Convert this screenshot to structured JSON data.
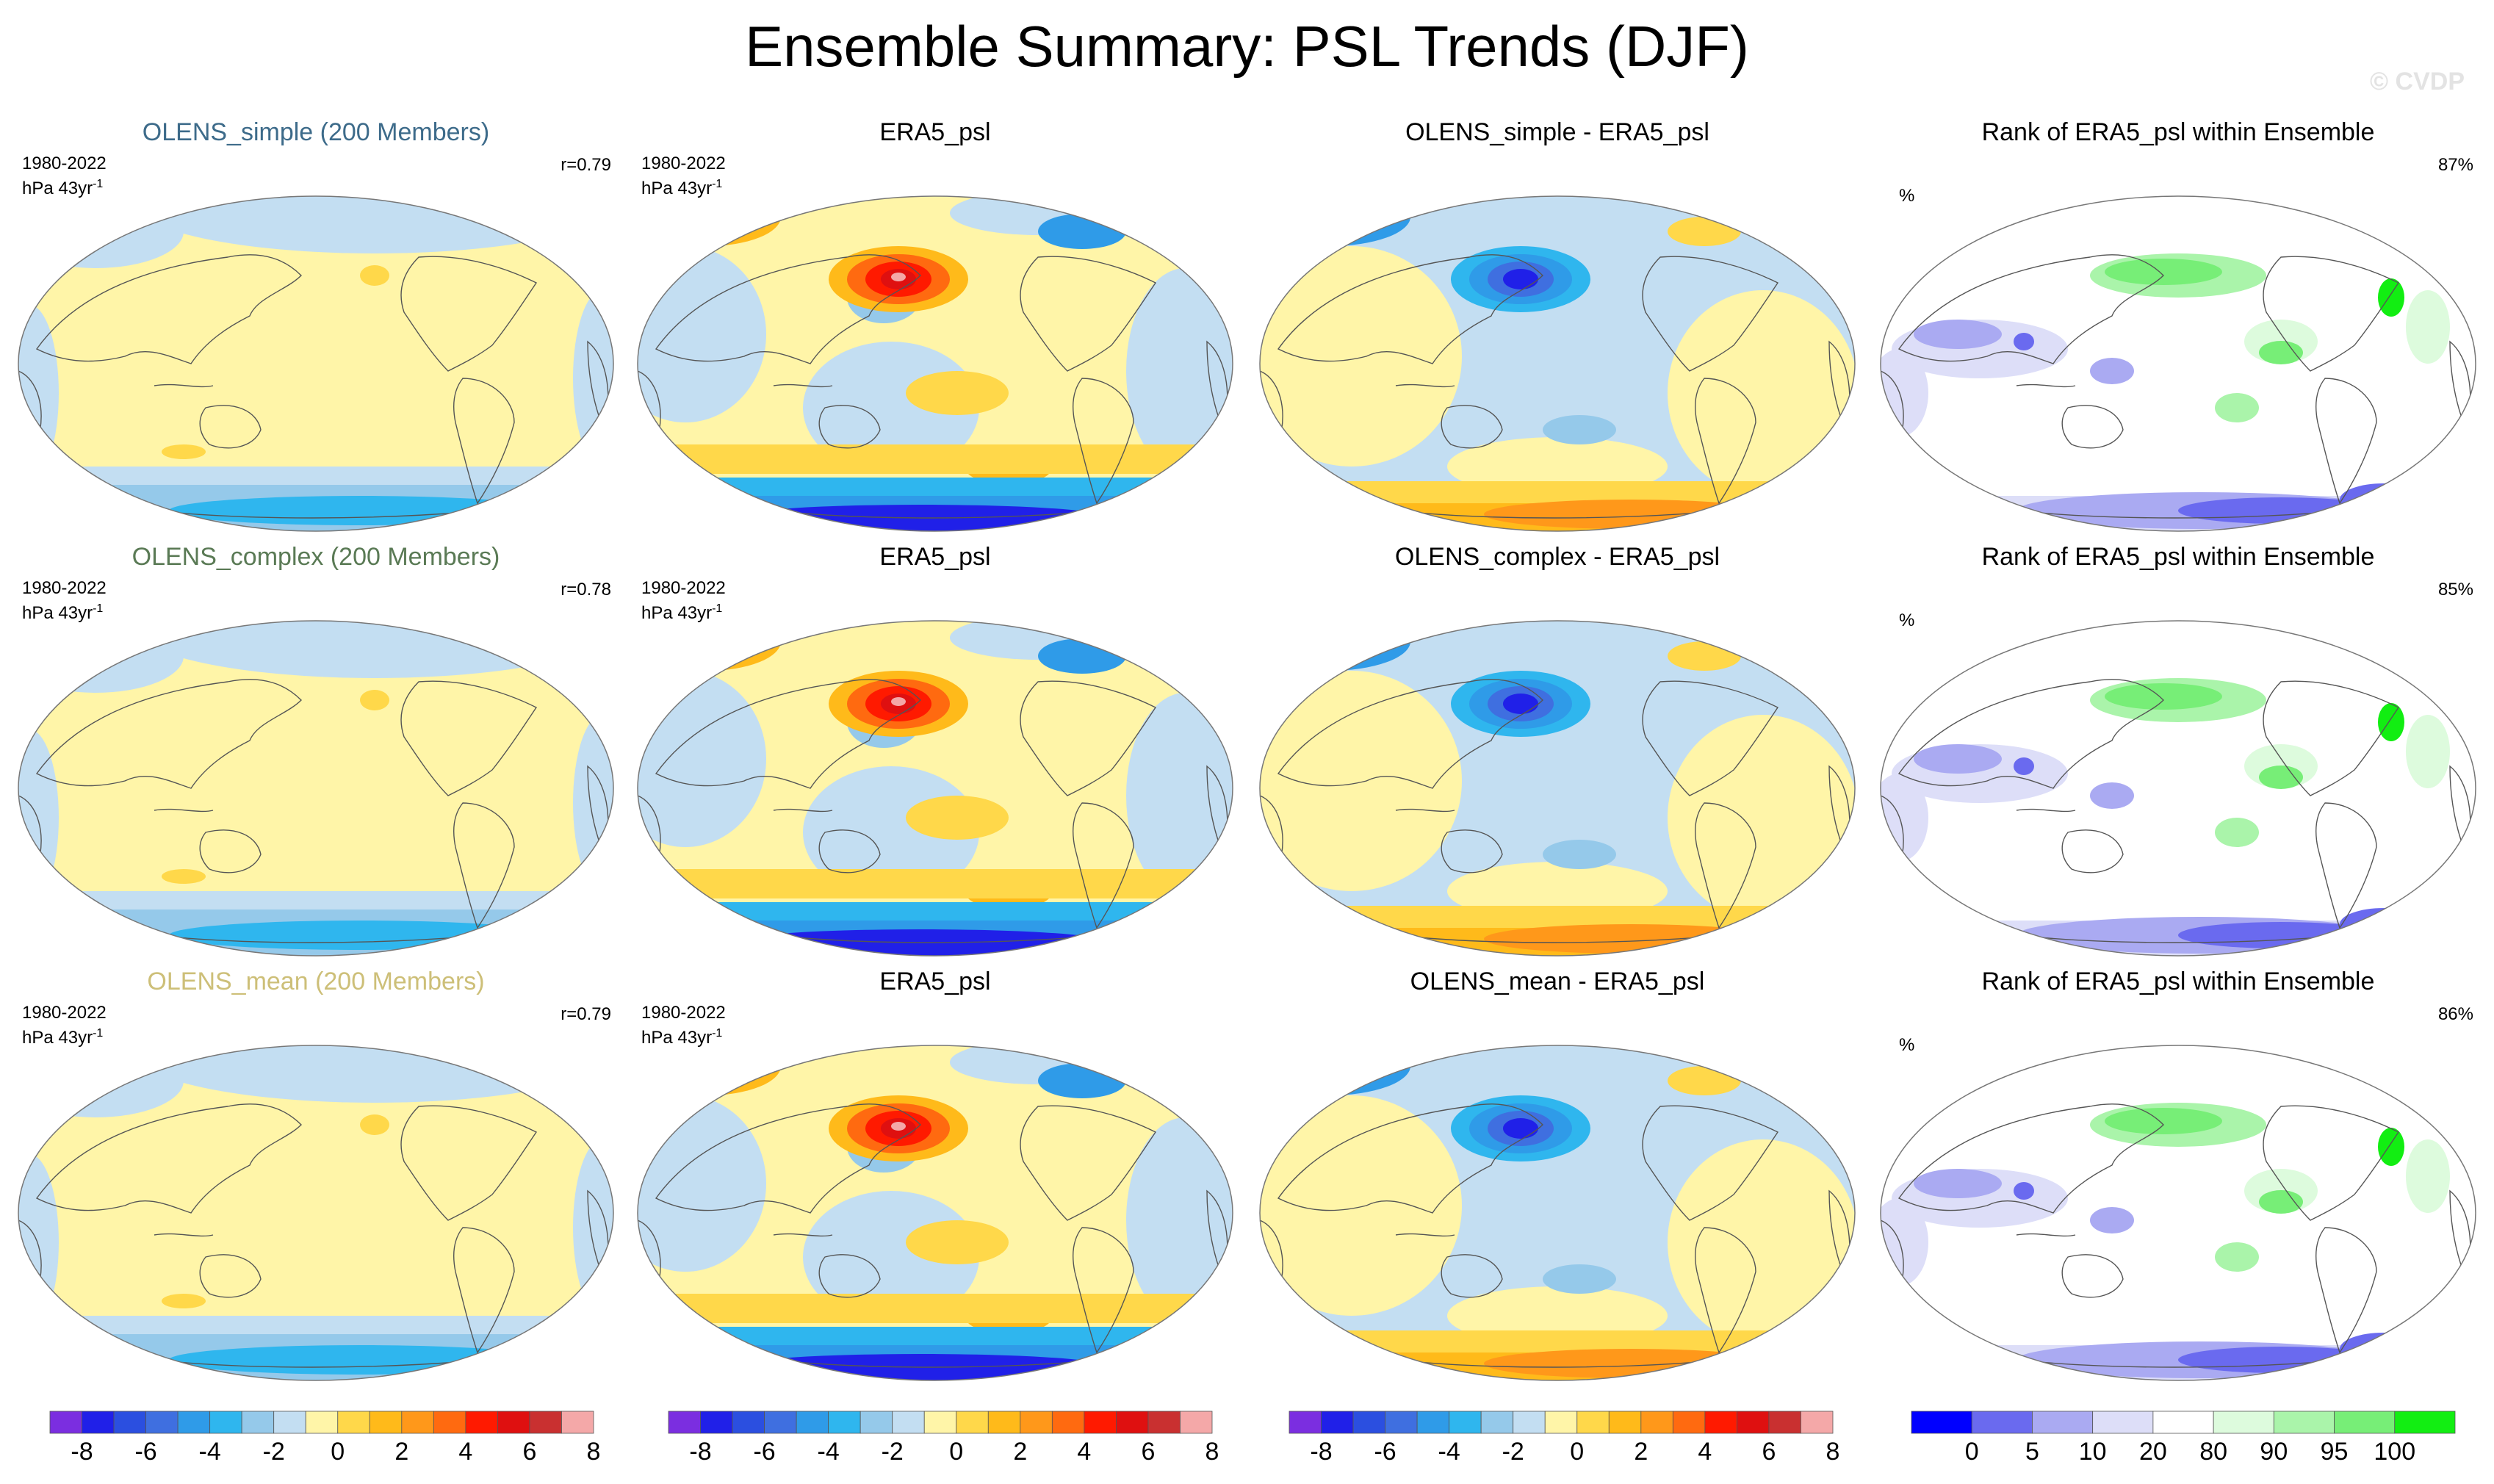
{
  "title": "Ensemble Summary: PSL Trends (DJF)",
  "watermark": "© CVDP",
  "rows": [
    {
      "model": {
        "title": "OLENS_simple (200 Members)",
        "title_color": "#3d6b8a",
        "period": "1980-2022",
        "units": "hPa 43yr",
        "units_sup": "-1",
        "pattern_corr": "r=0.79"
      },
      "obs": {
        "title": "ERA5_psl",
        "period": "1980-2022",
        "units": "hPa 43yr",
        "units_sup": "-1"
      },
      "diff": {
        "title": "OLENS_simple - ERA5_psl"
      },
      "rank": {
        "title": "Rank of ERA5_psl within Ensemble",
        "units": "%",
        "percent": "87%"
      }
    },
    {
      "model": {
        "title": "OLENS_complex (200 Members)",
        "title_color": "#5a7a55",
        "period": "1980-2022",
        "units": "hPa 43yr",
        "units_sup": "-1",
        "pattern_corr": "r=0.78"
      },
      "obs": {
        "title": "ERA5_psl",
        "period": "1980-2022",
        "units": "hPa 43yr",
        "units_sup": "-1"
      },
      "diff": {
        "title": "OLENS_complex - ERA5_psl"
      },
      "rank": {
        "title": "Rank of ERA5_psl within Ensemble",
        "units": "%",
        "percent": "85%"
      }
    },
    {
      "model": {
        "title": "OLENS_mean (200 Members)",
        "title_color": "#cdbf78",
        "period": "1980-2022",
        "units": "hPa 43yr",
        "units_sup": "-1",
        "pattern_corr": "r=0.79"
      },
      "obs": {
        "title": "ERA5_psl",
        "period": "1980-2022",
        "units": "hPa 43yr",
        "units_sup": "-1"
      },
      "diff": {
        "title": "OLENS_mean - ERA5_psl"
      },
      "rank": {
        "title": "Rank of ERA5_psl within Ensemble",
        "units": "%",
        "percent": "86%"
      }
    }
  ],
  "trend_colorbar": {
    "colors": [
      "#7b2ee0",
      "#2020e8",
      "#2b4fe0",
      "#3f6fe0",
      "#2f9be8",
      "#2fb6ee",
      "#95c9ea",
      "#c3def2",
      "#fff5a8",
      "#ffd84a",
      "#ffba1a",
      "#ff981a",
      "#ff6a10",
      "#ff1a00",
      "#df1010",
      "#c93030",
      "#f4a8a8"
    ],
    "labels": [
      "-8",
      "-6",
      "-4",
      "-2",
      "0",
      "2",
      "4",
      "6",
      "8"
    ]
  },
  "rank_colorbar": {
    "colors": [
      "#0000ff",
      "#6a6aef",
      "#aaaaf2",
      "#dddef8",
      "#ffffff",
      "#ddfbdd",
      "#aaf4aa",
      "#77ee77",
      "#12ee12"
    ],
    "labels": [
      "0",
      "5",
      "10",
      "20",
      "80",
      "90",
      "95",
      "100"
    ]
  }
}
